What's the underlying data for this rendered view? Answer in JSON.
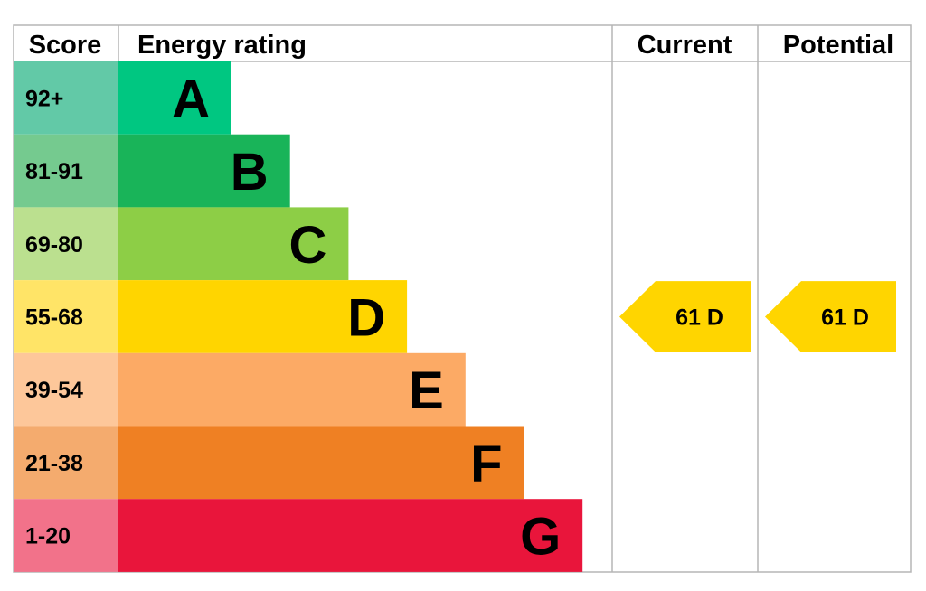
{
  "chart_data": {
    "type": "table",
    "headers": {
      "score": "Score",
      "rating": "Energy rating",
      "current": "Current",
      "potential": "Potential"
    },
    "bands": [
      {
        "score": "92+",
        "letter": "A",
        "color": "#00c781",
        "score_bg": "#62c9a7"
      },
      {
        "score": "81-91",
        "letter": "B",
        "color": "#19b459",
        "score_bg": "#75ca8f"
      },
      {
        "score": "69-80",
        "letter": "C",
        "color": "#8dce46",
        "score_bg": "#bbe08f"
      },
      {
        "score": "55-68",
        "letter": "D",
        "color": "#ffd500",
        "score_bg": "#ffe467"
      },
      {
        "score": "39-54",
        "letter": "E",
        "color": "#fcaa65",
        "score_bg": "#fdc79a"
      },
      {
        "score": "21-38",
        "letter": "F",
        "color": "#ef8023",
        "score_bg": "#f4ab6e"
      },
      {
        "score": "1-20",
        "letter": "G",
        "color": "#e9153b",
        "score_bg": "#f2728a"
      }
    ],
    "current": {
      "value": 61,
      "letter": "D",
      "label": "61  D",
      "color": "#ffd500"
    },
    "potential": {
      "value": 61,
      "letter": "D",
      "label": "61  D",
      "color": "#ffd500"
    }
  }
}
